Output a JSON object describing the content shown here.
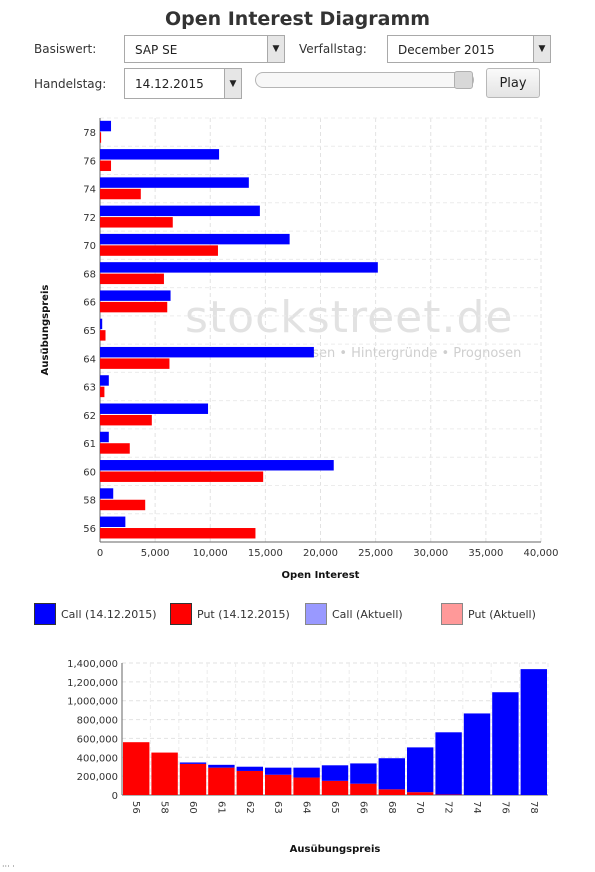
{
  "page": {
    "title": "Open Interest Diagramm",
    "footer_mark": "··· ·"
  },
  "controls": {
    "basiswert_label": "Basiswert:",
    "basiswert_value": "SAP SE",
    "verfallstag_label": "Verfallstag:",
    "verfallstag_value": "December 2015",
    "handelstag_label": "Handelstag:",
    "handelstag_value": "14.12.2015",
    "slider_value": 1.0,
    "play_label": "Play"
  },
  "watermark": {
    "brand": "stockstreet.de",
    "tagline": "Börsen • Hintergründe • Prognosen"
  },
  "colors": {
    "call": "#0000ff",
    "put": "#ff0000",
    "call_current": "#9999ff",
    "put_current": "#ff9999"
  },
  "legend": [
    {
      "label": "Call (14.12.2015)",
      "color": "#0000ff"
    },
    {
      "label": "Put (14.12.2015)",
      "color": "#ff0000"
    },
    {
      "label": "Call (Aktuell)",
      "color": "#9999ff"
    },
    {
      "label": "Put (Aktuell)",
      "color": "#ff9999"
    }
  ],
  "chart_data": [
    {
      "type": "bar",
      "orientation": "horizontal",
      "title": "Open Interest Diagramm",
      "xlabel": "Open Interest",
      "ylabel": "Ausübungspreis",
      "categories": [
        "78",
        "76",
        "74",
        "72",
        "70",
        "68",
        "66",
        "65",
        "64",
        "63",
        "62",
        "61",
        "60",
        "58",
        "56"
      ],
      "xlim": [
        0,
        40000
      ],
      "x_ticks": [
        "0",
        "5,000",
        "10,000",
        "15,000",
        "20,000",
        "25,000",
        "30,000",
        "35,000",
        "40,000"
      ],
      "grid": true,
      "series": [
        {
          "name": "Call (14.12.2015)",
          "values": [
            1000,
            10800,
            13500,
            14500,
            17200,
            25200,
            6400,
            200,
            19400,
            800,
            9800,
            800,
            21200,
            1200,
            2300
          ]
        },
        {
          "name": "Put (14.12.2015)",
          "values": [
            100,
            1000,
            3700,
            6600,
            10700,
            5800,
            6100,
            500,
            6300,
            400,
            4700,
            2700,
            14800,
            4100,
            14100
          ]
        }
      ]
    },
    {
      "type": "bar",
      "stacked": true,
      "xlabel": "Ausübungspreis",
      "ylabel": "",
      "categories": [
        "56",
        "58",
        "60",
        "61",
        "62",
        "63",
        "64",
        "65",
        "66",
        "68",
        "70",
        "72",
        "74",
        "76",
        "78"
      ],
      "ylim": [
        0,
        1400000
      ],
      "y_ticks": [
        "0",
        "200,000",
        "400,000",
        "600,000",
        "800,000",
        "1,000,000",
        "1,200,000",
        "1,400,000"
      ],
      "grid": true,
      "series": [
        {
          "name": "Put",
          "values": [
            560000,
            450000,
            330000,
            290000,
            255000,
            215000,
            185000,
            150000,
            120000,
            60000,
            30000,
            5000,
            0,
            0,
            0
          ]
        },
        {
          "name": "Call",
          "values": [
            0,
            0,
            15000,
            30000,
            45000,
            75000,
            105000,
            165000,
            215000,
            330000,
            475000,
            660000,
            865000,
            1090000,
            1335000
          ]
        }
      ]
    }
  ]
}
